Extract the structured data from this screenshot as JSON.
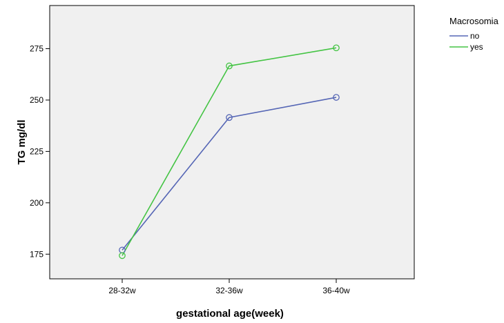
{
  "chart_data": {
    "type": "line",
    "categories": [
      "28-32w",
      "32-36w",
      "36-40w"
    ],
    "xlabel": "gestational age(week)",
    "ylabel": "TG mg/dl",
    "ylim": [
      163,
      296
    ],
    "yticks": [
      175,
      200,
      225,
      250,
      275
    ],
    "grid": false,
    "legend": {
      "title": "Macrosomia",
      "placement": "top-right"
    },
    "series": [
      {
        "name": "no",
        "color": "#5566b5",
        "values": [
          177,
          241.5,
          251.3
        ]
      },
      {
        "name": "yes",
        "color": "#44c444",
        "values": [
          174.3,
          266.6,
          275.4
        ]
      }
    ],
    "plot_background": "#f0f0f0"
  }
}
